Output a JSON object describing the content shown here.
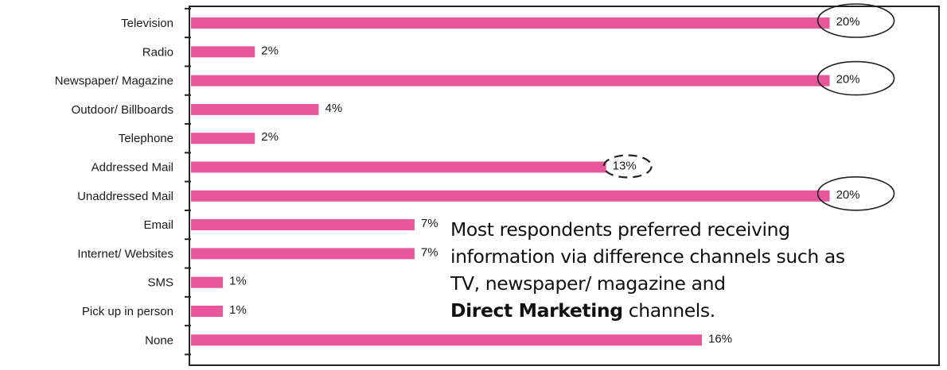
{
  "chart_data": {
    "type": "bar",
    "orientation": "horizontal",
    "categories": [
      "Television",
      "Radio",
      "Newspaper/ Magazine",
      "Outdoor/ Billboards",
      "Telephone",
      "Addressed Mail",
      "Unaddressed Mail",
      "Email",
      "Internet/ Websites",
      "SMS",
      "Pick up in person",
      "None"
    ],
    "values": [
      20,
      2,
      20,
      4,
      2,
      13,
      20,
      7,
      7,
      1,
      1,
      16
    ],
    "value_labels": [
      "20%",
      "2%",
      "20%",
      "4%",
      "2%",
      "13%",
      "20%",
      "7%",
      "7%",
      "1%",
      "1%",
      "16%"
    ],
    "unit": "%",
    "xlim": [
      0,
      23.4
    ],
    "grid": false,
    "bar_color": "#e8569b",
    "highlights": [
      {
        "category": "Television",
        "style": "solid-circle"
      },
      {
        "category": "Newspaper/ Magazine",
        "style": "solid-circle"
      },
      {
        "category": "Unaddressed Mail",
        "style": "solid-circle"
      },
      {
        "category": "Addressed Mail",
        "style": "dashed-circle"
      }
    ]
  },
  "annotation": {
    "lines": [
      "Most respondents preferred receiving",
      "information via difference channels such as",
      "TV, newspaper/ magazine and"
    ],
    "bold_text": "Direct Marketing",
    "last_line_rest": " channels."
  }
}
